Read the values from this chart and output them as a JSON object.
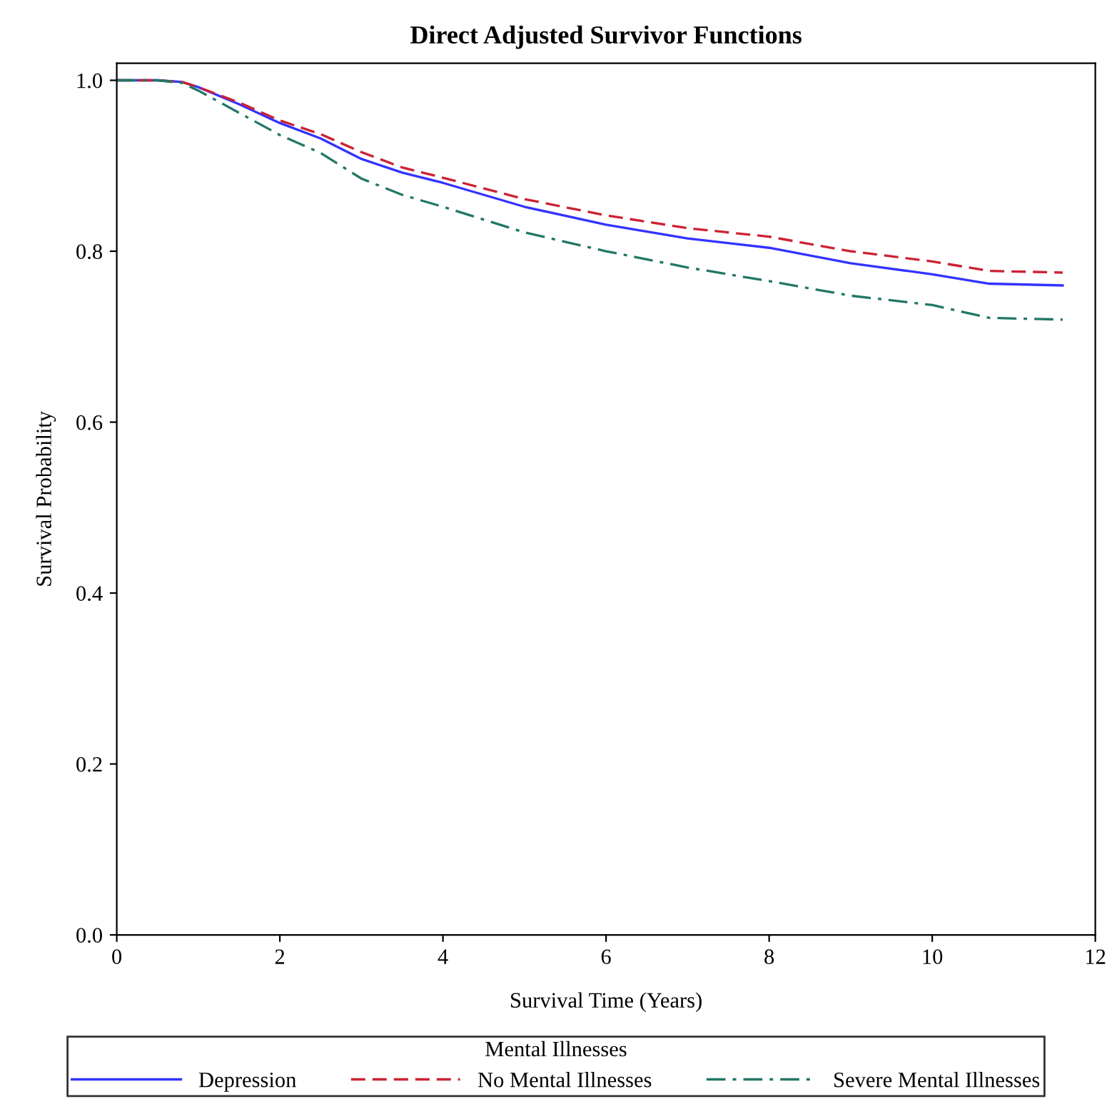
{
  "chart_data": {
    "type": "line",
    "title": "Direct Adjusted Survivor Functions",
    "xlabel": "Survival Time (Years)",
    "ylabel": "Survival Probability",
    "legend_title": "Mental Illnesses",
    "legend": "bottom",
    "grid": false,
    "marker": "none",
    "xlim": [
      0,
      12
    ],
    "xticks": [
      0,
      2,
      4,
      6,
      8,
      10,
      12
    ],
    "ylim": [
      0,
      1.02
    ],
    "yticks": [
      {
        "value": 0,
        "label": "0.0"
      },
      0.2,
      0.4,
      0.6,
      0.8,
      {
        "value": 1,
        "label": "1.0"
      }
    ],
    "series": [
      {
        "name": "Depression",
        "color": "#3333ff",
        "line_style": "solid",
        "x": [
          0,
          0.5,
          0.8,
          1.0,
          1.5,
          2,
          2.5,
          3,
          3.5,
          4,
          5,
          6,
          7,
          8,
          9,
          10,
          10.7,
          11.6
        ],
        "values": [
          1.0,
          1.0,
          0.998,
          0.992,
          0.972,
          0.95,
          0.932,
          0.908,
          0.892,
          0.88,
          0.852,
          0.831,
          0.815,
          0.804,
          0.786,
          0.773,
          0.762,
          0.76
        ]
      },
      {
        "name": "No Mental Illnesses",
        "color": "#cc2233",
        "line_style": "dashed",
        "x": [
          0,
          0.5,
          0.8,
          1.0,
          1.5,
          2,
          2.5,
          3,
          3.5,
          4,
          5,
          6,
          7,
          8,
          9,
          10,
          10.7,
          11.6
        ],
        "values": [
          1.0,
          1.0,
          0.998,
          0.992,
          0.974,
          0.953,
          0.937,
          0.916,
          0.898,
          0.886,
          0.861,
          0.842,
          0.827,
          0.817,
          0.8,
          0.788,
          0.777,
          0.775
        ]
      },
      {
        "name": "Severe Mental Illnesses",
        "color": "#227766",
        "line_style": "dashdot",
        "x": [
          0,
          0.5,
          0.8,
          1.0,
          1.5,
          2,
          2.5,
          3,
          3.5,
          4,
          5,
          6,
          7,
          8,
          9,
          10,
          10.7,
          11.6
        ],
        "values": [
          1.0,
          1.0,
          0.997,
          0.988,
          0.962,
          0.936,
          0.915,
          0.885,
          0.866,
          0.852,
          0.822,
          0.8,
          0.781,
          0.765,
          0.748,
          0.737,
          0.722,
          0.72
        ]
      }
    ]
  }
}
